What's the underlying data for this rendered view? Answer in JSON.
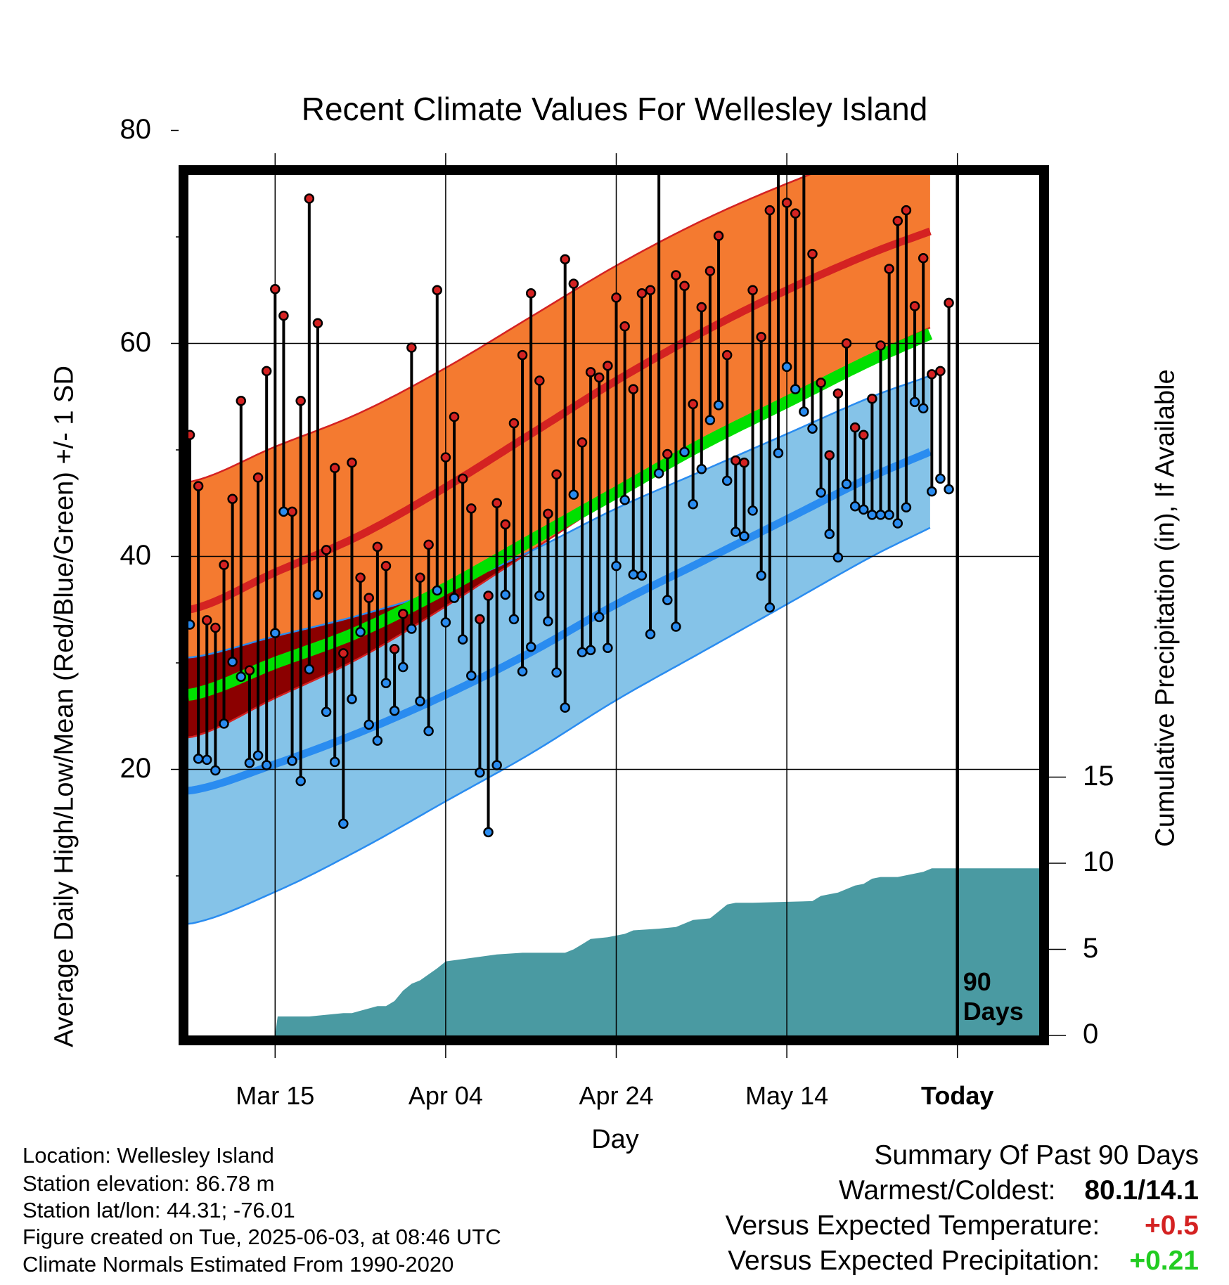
{
  "chart_data": {
    "type": "line",
    "title": "Recent Climate Values For Wellesley Island",
    "xlabel": "Day",
    "ylabel": "Average Daily High/Low/Mean (Red/Blue/Green) +/- 1 SD",
    "y2label": "Cumulative Precipitation (in), If Available",
    "ylim": [
      0,
      86
    ],
    "y2lim": [
      0,
      35
    ],
    "yticks": [
      "80",
      "60",
      "40",
      "20"
    ],
    "y2ticks": [
      "15",
      "10",
      "5",
      "0"
    ],
    "xticks": [
      {
        "label": "Mar 15",
        "day": 10
      },
      {
        "label": "Apr 04",
        "day": 30
      },
      {
        "label": "Apr 24",
        "day": 50
      },
      {
        "label": "May 14",
        "day": 70
      },
      {
        "label": "Today",
        "day": 90,
        "bold": true
      }
    ],
    "today_day": 90,
    "days_label": [
      "90",
      "Days"
    ],
    "normals": {
      "days": [
        0,
        10,
        20,
        30,
        40,
        50,
        60,
        70,
        80,
        90,
        100
      ],
      "high": [
        35.0,
        38.5,
        42.0,
        46.5,
        51.5,
        56.5,
        61.0,
        65.0,
        68.5,
        71.5,
        75.0
      ],
      "high_sd": [
        12.0,
        11.8,
        11.5,
        11.2,
        11.0,
        10.8,
        10.5,
        10.0,
        9.5,
        8.8,
        8.0
      ],
      "mean": [
        27.0,
        30.0,
        33.0,
        37.0,
        41.5,
        46.0,
        50.5,
        54.5,
        58.5,
        62.0,
        65.5
      ],
      "low": [
        18.0,
        20.5,
        23.5,
        27.0,
        31.0,
        35.5,
        39.5,
        43.5,
        47.5,
        51.0,
        55.5
      ],
      "low_sd": [
        12.5,
        12.0,
        11.0,
        10.0,
        9.5,
        9.0,
        8.5,
        8.0,
        7.5,
        7.0,
        6.8
      ]
    },
    "observed": [
      {
        "day": 0,
        "high": 51.4,
        "low": 33.6
      },
      {
        "day": 1,
        "high": 46.6,
        "low": 21.0
      },
      {
        "day": 2,
        "high": 34.0,
        "low": 20.9
      },
      {
        "day": 3,
        "high": 33.3,
        "low": 19.9
      },
      {
        "day": 4,
        "high": 39.2,
        "low": 24.3
      },
      {
        "day": 5,
        "high": 45.4,
        "low": 30.1
      },
      {
        "day": 6,
        "high": 54.6,
        "low": 28.7
      },
      {
        "day": 7,
        "high": 29.3,
        "low": 20.6
      },
      {
        "day": 8,
        "high": 47.4,
        "low": 21.3
      },
      {
        "day": 9,
        "high": 57.4,
        "low": 20.4
      },
      {
        "day": 10,
        "high": 65.1,
        "low": 32.8
      },
      {
        "day": 11,
        "high": 62.6,
        "low": 44.2
      },
      {
        "day": 12,
        "high": 44.2,
        "low": 20.8
      },
      {
        "day": 13,
        "high": 54.6,
        "low": 18.9
      },
      {
        "day": 14,
        "high": 73.6,
        "low": 29.4
      },
      {
        "day": 15,
        "high": 61.9,
        "low": 36.4
      },
      {
        "day": 16,
        "high": 40.6,
        "low": 25.4
      },
      {
        "day": 17,
        "high": 48.3,
        "low": 20.7
      },
      {
        "day": 18,
        "high": 30.9,
        "low": 14.9
      },
      {
        "day": 19,
        "high": 48.8,
        "low": 26.6
      },
      {
        "day": 20,
        "high": 38.0,
        "low": 32.9
      },
      {
        "day": 21,
        "high": 36.1,
        "low": 24.2
      },
      {
        "day": 22,
        "high": 40.9,
        "low": 22.7
      },
      {
        "day": 23,
        "high": 39.1,
        "low": 28.1
      },
      {
        "day": 24,
        "high": 31.3,
        "low": 25.5
      },
      {
        "day": 25,
        "high": 34.6,
        "low": 29.6
      },
      {
        "day": 26,
        "high": 59.6,
        "low": 33.2
      },
      {
        "day": 27,
        "high": 38.0,
        "low": 26.4
      },
      {
        "day": 28,
        "high": 41.1,
        "low": 23.6
      },
      {
        "day": 29,
        "high": 65.0,
        "low": 36.8
      },
      {
        "day": 30,
        "high": 49.3,
        "low": 33.8
      },
      {
        "day": 31,
        "high": 53.1,
        "low": 36.1
      },
      {
        "day": 32,
        "high": 47.3,
        "low": 32.2
      },
      {
        "day": 33,
        "high": 44.5,
        "low": 28.8
      },
      {
        "day": 34,
        "high": 34.1,
        "low": 19.7
      },
      {
        "day": 35,
        "high": 36.3,
        "low": 14.1
      },
      {
        "day": 36,
        "high": 45.0,
        "low": 20.4
      },
      {
        "day": 37,
        "high": 43.0,
        "low": 36.4
      },
      {
        "day": 38,
        "high": 52.5,
        "low": 34.1
      },
      {
        "day": 39,
        "high": 58.9,
        "low": 29.2
      },
      {
        "day": 40,
        "high": 64.7,
        "low": 31.5
      },
      {
        "day": 41,
        "high": 56.5,
        "low": 36.3
      },
      {
        "day": 42,
        "high": 44.0,
        "low": 33.9
      },
      {
        "day": 43,
        "high": 47.7,
        "low": 29.1
      },
      {
        "day": 44,
        "high": 67.9,
        "low": 25.8
      },
      {
        "day": 45,
        "high": 65.6,
        "low": 45.8
      },
      {
        "day": 46,
        "high": 50.7,
        "low": 31.0
      },
      {
        "day": 47,
        "high": 57.3,
        "low": 31.2
      },
      {
        "day": 48,
        "high": 56.8,
        "low": 34.3
      },
      {
        "day": 49,
        "high": 57.9,
        "low": 31.4
      },
      {
        "day": 50,
        "high": 64.3,
        "low": 39.1
      },
      {
        "day": 51,
        "high": 61.6,
        "low": 45.3
      },
      {
        "day": 52,
        "high": 55.7,
        "low": 38.3
      },
      {
        "day": 53,
        "high": 64.7,
        "low": 38.2
      },
      {
        "day": 54,
        "high": 65.0,
        "low": 32.7
      },
      {
        "day": 55,
        "high": 79.2,
        "low": 47.8
      },
      {
        "day": 56,
        "high": 49.6,
        "low": 35.9
      },
      {
        "day": 57,
        "high": 66.4,
        "low": 33.4
      },
      {
        "day": 58,
        "high": 65.4,
        "low": 49.8
      },
      {
        "day": 59,
        "high": 54.3,
        "low": 44.9
      },
      {
        "day": 60,
        "high": 63.4,
        "low": 48.2
      },
      {
        "day": 61,
        "high": 66.8,
        "low": 52.8
      },
      {
        "day": 62,
        "high": 70.1,
        "low": 54.2
      },
      {
        "day": 63,
        "high": 58.9,
        "low": 47.1
      },
      {
        "day": 64,
        "high": 49.0,
        "low": 42.3
      },
      {
        "day": 65,
        "high": 48.8,
        "low": 41.9
      },
      {
        "day": 66,
        "high": 65.0,
        "low": 44.3
      },
      {
        "day": 67,
        "high": 60.6,
        "low": 38.2
      },
      {
        "day": 68,
        "high": 72.5,
        "low": 35.2
      },
      {
        "day": 69,
        "high": 80.1,
        "low": 49.7
      },
      {
        "day": 70,
        "high": 73.2,
        "low": 57.8
      },
      {
        "day": 71,
        "high": 72.2,
        "low": 55.7
      },
      {
        "day": 72,
        "high": 76.6,
        "low": 53.6
      },
      {
        "day": 73,
        "high": 68.4,
        "low": 52.0
      },
      {
        "day": 74,
        "high": 56.3,
        "low": 46.0
      },
      {
        "day": 75,
        "high": 49.5,
        "low": 42.1
      },
      {
        "day": 76,
        "high": 55.3,
        "low": 39.9
      },
      {
        "day": 77,
        "high": 60.0,
        "low": 46.8
      },
      {
        "day": 78,
        "high": 52.1,
        "low": 44.7
      },
      {
        "day": 79,
        "high": 51.4,
        "low": 44.4
      },
      {
        "day": 80,
        "high": 54.8,
        "low": 43.9
      },
      {
        "day": 81,
        "high": 59.8,
        "low": 43.9
      },
      {
        "day": 82,
        "high": 67.0,
        "low": 43.9
      },
      {
        "day": 83,
        "high": 71.5,
        "low": 43.1
      },
      {
        "day": 84,
        "high": 72.5,
        "low": 44.6
      },
      {
        "day": 85,
        "high": 63.5,
        "low": 54.5
      },
      {
        "day": 86,
        "high": 68.0,
        "low": 53.9
      },
      {
        "day": 87,
        "high": 57.1,
        "low": 46.1
      },
      {
        "day": 88,
        "high": 57.4,
        "low": 47.3
      },
      {
        "day": 89,
        "high": 63.8,
        "low": 46.3
      }
    ],
    "precip": {
      "days": [
        0,
        10,
        10.3,
        14,
        18,
        19,
        22,
        23,
        24,
        25,
        26,
        27,
        29,
        30,
        33,
        36,
        39,
        44,
        45,
        46,
        47,
        49,
        51,
        52,
        55,
        57,
        59,
        61,
        62,
        63,
        64,
        66,
        73,
        74,
        76,
        78,
        79,
        80,
        81,
        82,
        83,
        86,
        87,
        88,
        91,
        100
      ],
      "values": [
        0,
        0,
        1.1,
        1.1,
        1.3,
        1.3,
        1.7,
        1.7,
        2.0,
        2.6,
        3.0,
        3.2,
        3.9,
        4.3,
        4.5,
        4.7,
        4.8,
        4.8,
        5.0,
        5.3,
        5.6,
        5.7,
        5.9,
        6.1,
        6.2,
        6.3,
        6.7,
        6.8,
        7.2,
        7.6,
        7.7,
        7.7,
        7.8,
        8.1,
        8.3,
        8.7,
        8.8,
        9.1,
        9.2,
        9.2,
        9.2,
        9.5,
        9.7,
        9.7,
        9.7,
        9.7
      ]
    },
    "colors": {
      "high": "#d42222",
      "high_band": "#f47a30",
      "mean": "#00e000",
      "low": "#2a8cf0",
      "low_band": "#85c3e8",
      "overlap": "#8b0000",
      "precip": "#4a9aa2"
    }
  },
  "info": {
    "location": "Location: Wellesley Island",
    "elevation": "Station elevation: 86.78 m",
    "latlon": "Station lat/lon: 44.31; -76.01",
    "created": "Figure created on Tue, 2025-06-03, at 08:46 UTC",
    "normals": "Climate Normals Estimated From 1990-2020"
  },
  "summary": {
    "title": "Summary Of Past 90 Days",
    "warmest_coldest_label": "Warmest/Coldest:",
    "warmest_coldest_value": "80.1/14.1",
    "temp_label": "Versus Expected Temperature:",
    "temp_value": "+0.5",
    "temp_color": "#d42222",
    "precip_label": "Versus Expected Precipitation:",
    "precip_value": "+0.21",
    "precip_color": "#22cc22"
  }
}
